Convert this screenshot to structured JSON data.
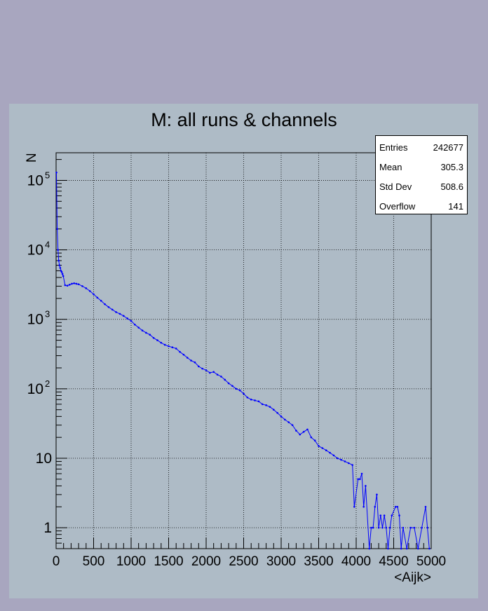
{
  "chart_data": {
    "type": "line",
    "title": "M: all runs & channels",
    "xlabel": "<Aijk>",
    "ylabel": "N",
    "xlim": [
      0,
      5000
    ],
    "ylim": [
      0.5,
      250000
    ],
    "yscale": "log",
    "grid": true,
    "x_ticks": [
      "0",
      "500",
      "1000",
      "1500",
      "2000",
      "2500",
      "3000",
      "3500",
      "4000",
      "4500",
      "5000"
    ],
    "y_ticks": [
      {
        "base": "1",
        "exp": ""
      },
      {
        "base": "10",
        "exp": ""
      },
      {
        "base": "10",
        "exp": "2"
      },
      {
        "base": "10",
        "exp": "3"
      },
      {
        "base": "10",
        "exp": "4"
      },
      {
        "base": "10",
        "exp": "5"
      }
    ],
    "stats": {
      "entries_label": "Entries",
      "entries": "242677",
      "mean_label": "Mean",
      "mean": "305.3",
      "stddev_label": "Std Dev",
      "stddev": "508.6",
      "overflow_label": "Overflow",
      "overflow": "141"
    },
    "series": [
      {
        "color": "#0000ff",
        "x": [
          5,
          15,
          25,
          35,
          45,
          55,
          65,
          75,
          85,
          95,
          120,
          150,
          180,
          210,
          240,
          270,
          300,
          350,
          400,
          450,
          500,
          550,
          600,
          650,
          700,
          750,
          800,
          850,
          900,
          950,
          1000,
          1050,
          1100,
          1150,
          1200,
          1250,
          1300,
          1350,
          1400,
          1450,
          1500,
          1550,
          1600,
          1650,
          1700,
          1750,
          1800,
          1850,
          1900,
          1950,
          2000,
          2050,
          2100,
          2150,
          2200,
          2250,
          2300,
          2350,
          2400,
          2450,
          2500,
          2550,
          2600,
          2650,
          2700,
          2750,
          2800,
          2850,
          2900,
          2950,
          3000,
          3050,
          3100,
          3150,
          3200,
          3250,
          3300,
          3350,
          3400,
          3450,
          3500,
          3550,
          3600,
          3650,
          3700,
          3750,
          3800,
          3850,
          3900,
          3950,
          3975,
          4025,
          4050,
          4075,
          4100,
          4125,
          4175,
          4200,
          4225,
          4250,
          4275,
          4300,
          4325,
          4350,
          4375,
          4400,
          4425,
          4450,
          4475,
          4525,
          4550,
          4575,
          4600,
          4625,
          4675,
          4725,
          4775,
          4825,
          4875,
          4925,
          4950,
          4975
        ],
        "y": [
          130000,
          20000,
          10000,
          7000,
          6000,
          5500,
          5000,
          4800,
          4500,
          4200,
          3100,
          3050,
          3150,
          3250,
          3300,
          3250,
          3200,
          3000,
          2800,
          2550,
          2300,
          2050,
          1850,
          1650,
          1500,
          1380,
          1270,
          1200,
          1120,
          1030,
          950,
          840,
          760,
          690,
          640,
          600,
          540,
          500,
          460,
          430,
          410,
          395,
          380,
          340,
          310,
          280,
          255,
          240,
          210,
          195,
          185,
          170,
          175,
          160,
          150,
          135,
          120,
          110,
          100,
          95,
          85,
          75,
          70,
          68,
          66,
          60,
          58,
          55,
          50,
          45,
          40,
          36,
          33,
          30,
          25,
          22,
          24,
          26,
          20,
          18,
          15,
          14,
          13,
          12,
          11,
          10,
          9.5,
          9,
          8.5,
          8,
          2,
          5,
          5,
          6,
          2,
          4,
          0.5,
          1,
          1,
          2,
          3,
          1,
          1.5,
          1,
          1.5,
          1,
          0.5,
          1,
          1.5,
          2,
          2,
          1.5,
          0.5,
          1,
          0.5,
          1,
          1,
          0.5,
          1,
          2,
          1,
          0.5
        ]
      }
    ]
  }
}
